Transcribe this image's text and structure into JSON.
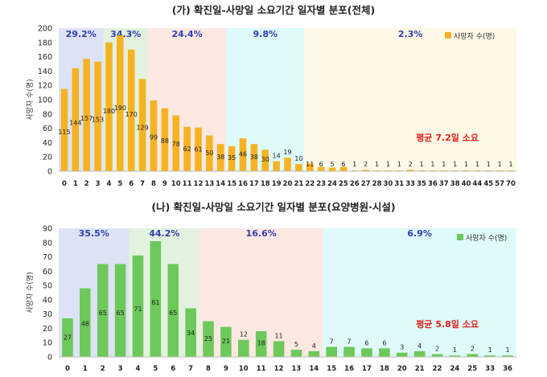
{
  "chart_data": [
    {
      "type": "bar",
      "title": "(가) 확진일-사망일 소요기간 일자별 분포(전체)",
      "ylabel": "사망자 수(명)",
      "legend": "사망자 수(명)",
      "legend_position": "top-right",
      "ylim": [
        0,
        200
      ],
      "yticks": [
        0,
        20,
        40,
        60,
        80,
        100,
        120,
        140,
        160,
        180,
        200
      ],
      "bar_color": "#f5b324",
      "categories": [
        "0",
        "1",
        "2",
        "3",
        "4",
        "5",
        "6",
        "7",
        "8",
        "9",
        "10",
        "11",
        "12",
        "13",
        "14",
        "15",
        "16",
        "17",
        "18",
        "19",
        "20",
        "21",
        "22",
        "23",
        "24",
        "25",
        "26",
        "27",
        "28",
        "30",
        "31",
        "33",
        "35",
        "36",
        "37",
        "38",
        "40",
        "44",
        "45",
        "57",
        "70"
      ],
      "values": [
        115,
        144,
        157,
        153,
        180,
        190,
        170,
        129,
        99,
        88,
        78,
        62,
        61,
        50,
        38,
        35,
        46,
        38,
        30,
        14,
        19,
        10,
        11,
        6,
        5,
        6,
        1,
        2,
        1,
        1,
        1,
        2,
        1,
        1,
        1,
        1,
        1,
        1,
        1,
        1,
        1
      ],
      "region_groups": [
        {
          "label": "29.2%",
          "from": 0,
          "to": 3,
          "color": "#dde3f5"
        },
        {
          "label": "34.3%",
          "from": 4,
          "to": 7,
          "color": "#e3f2de"
        },
        {
          "label": "24.4%",
          "from": 8,
          "to": 14,
          "color": "#fde8e2"
        },
        {
          "label": "9.8%",
          "from": 15,
          "to": 21,
          "color": "#defafb"
        },
        {
          "label": "2.3%",
          "from": 22,
          "to": 40,
          "color": "#fef8e6"
        }
      ],
      "annotation": "평균 7.2일 소요"
    },
    {
      "type": "bar",
      "title": "(나) 확진일-사망일 소요기간 일자별 분포(요양병원·시설)",
      "ylabel": "사망자 수(명)",
      "legend": "사망자 수(명)",
      "legend_position": "top-right",
      "ylim": [
        0,
        90
      ],
      "yticks": [
        0,
        10,
        20,
        30,
        40,
        50,
        60,
        70,
        80,
        90
      ],
      "bar_color": "#6cc95a",
      "categories": [
        "0",
        "1",
        "2",
        "3",
        "4",
        "5",
        "6",
        "7",
        "8",
        "9",
        "10",
        "11",
        "12",
        "13",
        "14",
        "15",
        "16",
        "17",
        "18",
        "20",
        "21",
        "22",
        "24",
        "25",
        "33",
        "36"
      ],
      "values": [
        27,
        48,
        65,
        65,
        71,
        81,
        65,
        34,
        25,
        21,
        12,
        18,
        11,
        5,
        4,
        7,
        7,
        6,
        6,
        3,
        4,
        2,
        1,
        2,
        1,
        1
      ],
      "region_groups": [
        {
          "label": "35.5%",
          "from": 0,
          "to": 3,
          "color": "#dde3f5"
        },
        {
          "label": "44.2%",
          "from": 4,
          "to": 7,
          "color": "#e3f2de"
        },
        {
          "label": "16.6%",
          "from": 8,
          "to": 14,
          "color": "#fde8e2"
        },
        {
          "label": "6.9%",
          "from": 15,
          "to": 25,
          "color": "#defafb"
        }
      ],
      "annotation": "평균 5.8일 소요"
    }
  ]
}
